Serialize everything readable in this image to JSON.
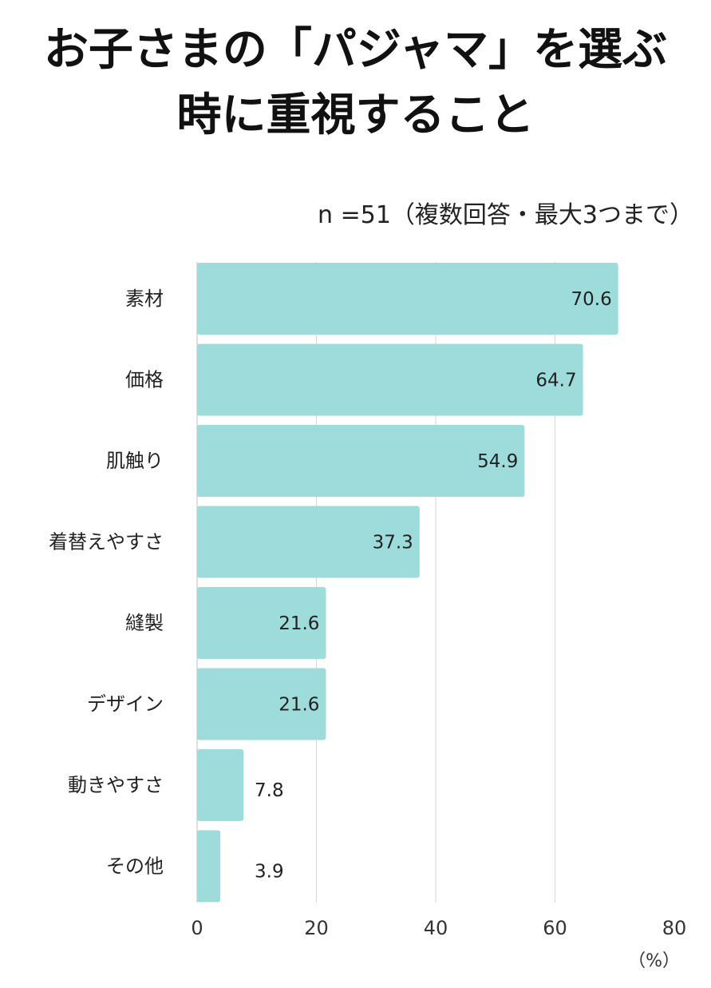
{
  "title_line1": "お子さまの「パジャマ」を選ぶ",
  "title_line2": "時に重視すること",
  "subtitle": "n =51（複数回答・最大3つまで）",
  "chart_data": {
    "type": "bar",
    "orientation": "horizontal",
    "categories": [
      "素材",
      "価格",
      "肌触り",
      "着替えやすさ",
      "縫製",
      "デザイン",
      "動きやすさ",
      "その他"
    ],
    "values": [
      70.6,
      64.7,
      54.9,
      37.3,
      21.6,
      21.6,
      7.8,
      3.9
    ],
    "value_labels": [
      "70.6",
      "64.7",
      "54.9",
      "37.3",
      "21.6",
      "21.6",
      "7.8",
      "3.9"
    ],
    "xlim": [
      0,
      80
    ],
    "xticks": [
      0,
      20,
      40,
      60,
      80
    ],
    "xtick_labels": [
      "0",
      "20",
      "40",
      "60",
      "80"
    ],
    "unit": "（%）",
    "grid": true,
    "bar_color": "#9edcdc"
  }
}
